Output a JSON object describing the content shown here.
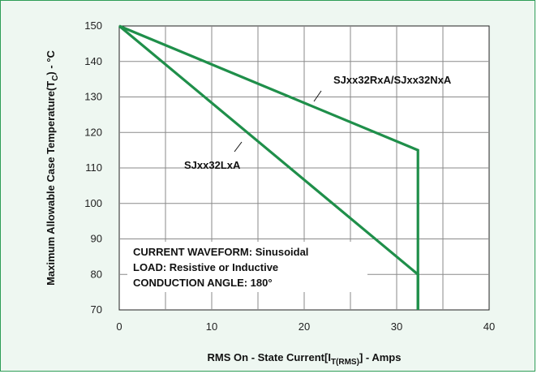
{
  "chart_data": {
    "type": "line",
    "title": "",
    "xlabel_parts": [
      "RMS On - State Current[I",
      "T(RMS)",
      "] - Amps"
    ],
    "ylabel_parts": [
      "Maximum Allowable Case Temperature(T",
      "C",
      ") - °C"
    ],
    "xlim": [
      0,
      40
    ],
    "ylim": [
      70,
      150
    ],
    "xticks": [
      "0",
      "10",
      "20",
      "30",
      "40"
    ],
    "yticks": [
      "70",
      "80",
      "90",
      "100",
      "110",
      "120",
      "130",
      "140",
      "150"
    ],
    "grid": true,
    "line_color": "#1f8f4a",
    "series": [
      {
        "name": "SJxx32RxA/SJxx32NxA",
        "points": [
          [
            0,
            150
          ],
          [
            32.3,
            115
          ],
          [
            32.3,
            70
          ]
        ]
      },
      {
        "name": "SJxx32LxA",
        "points": [
          [
            0,
            150
          ],
          [
            32.3,
            80
          ],
          [
            32.3,
            70
          ]
        ]
      }
    ],
    "annotation_lines": [
      "CURRENT WAVEFORM: Sinusoidal",
      "LOAD: Resistive or Inductive",
      "CONDUCTION ANGLE: 180°"
    ]
  }
}
